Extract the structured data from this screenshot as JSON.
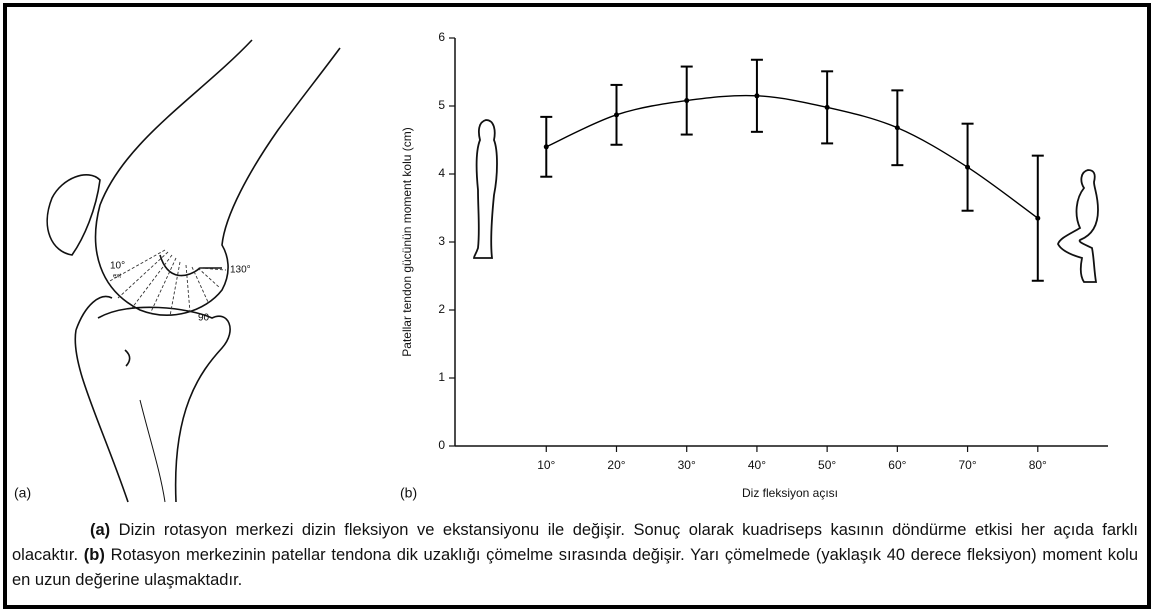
{
  "chart_data": {
    "type": "errorbar",
    "x": [
      10,
      20,
      30,
      40,
      50,
      60,
      70,
      80
    ],
    "values": [
      4.4,
      4.87,
      5.08,
      5.15,
      4.98,
      4.68,
      4.1,
      3.35
    ],
    "errors": [
      0.44,
      0.44,
      0.5,
      0.53,
      0.53,
      0.55,
      0.64,
      0.92
    ],
    "color": "#000000",
    "xlim": [
      -3,
      90
    ],
    "ylim": [
      0,
      6
    ],
    "xticks": [
      {
        "value": 10,
        "label": "10°"
      },
      {
        "value": 20,
        "label": "20°"
      },
      {
        "value": 30,
        "label": "30°"
      },
      {
        "value": 40,
        "label": "40°"
      },
      {
        "value": 50,
        "label": "50°"
      },
      {
        "value": 60,
        "label": "60°"
      },
      {
        "value": 70,
        "label": "70°"
      },
      {
        "value": 80,
        "label": "80°"
      }
    ],
    "yticks": [
      0,
      1,
      2,
      3,
      4,
      5,
      6
    ],
    "xlabel": "Diz fleksiyon açısı",
    "ylabel": "Patellar tendon gücünün moment kolu (cm)",
    "panel_label": "(b)"
  },
  "panel_a": {
    "label": "(a)",
    "angle_start": "10°",
    "angle_start_note": "ext",
    "angle_end": "130°",
    "angle_mid": "90"
  },
  "caption": {
    "a_label": "(a)",
    "a_text": " Dizin rotasyon merkezi dizin fleksiyon ve ekstansiyonu ile değişir. Sonuç olarak kuadriseps kasının döndürme etkisi her açıda farklı olacaktır. ",
    "b_label": "(b)",
    "b_text": " Rotasyon merkezinin patellar tendona dik uzaklığı çömelme sırasında değişir. Yarı çömelmede (yaklaşık 40 derece fleksiyon) moment kolu en uzun değerine ulaşmaktadır."
  }
}
